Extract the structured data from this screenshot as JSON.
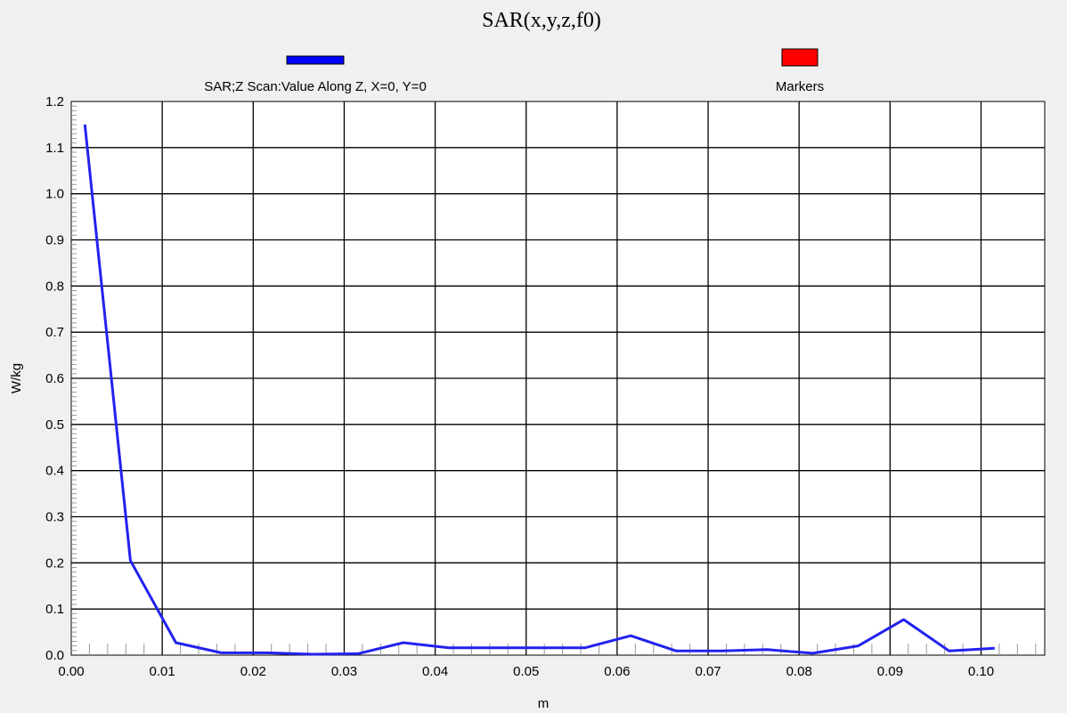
{
  "chart_data": {
    "type": "line",
    "title": "SAR(x,y,z,f0)",
    "xlabel": "m",
    "ylabel": "W/kg",
    "xlim": [
      0.0,
      0.107
    ],
    "ylim": [
      0.0,
      1.2
    ],
    "x_ticks": [
      "0.00",
      "0.01",
      "0.02",
      "0.03",
      "0.04",
      "0.05",
      "0.06",
      "0.07",
      "0.08",
      "0.09",
      "0.10"
    ],
    "y_ticks": [
      "0.0",
      "0.1",
      "0.2",
      "0.3",
      "0.4",
      "0.5",
      "0.6",
      "0.7",
      "0.8",
      "0.9",
      "1.0",
      "1.1",
      "1.2"
    ],
    "grid": true,
    "legend_position": "top",
    "legend": [
      {
        "label": "SAR;Z Scan:Value Along Z, X=0, Y=0",
        "color": "#0000ff"
      },
      {
        "label": "Markers",
        "color": "#ff0000"
      }
    ],
    "series": [
      {
        "name": "SAR;Z Scan:Value Along Z, X=0, Y=0",
        "color": "#2222ee",
        "x": [
          0.0015,
          0.0065,
          0.0115,
          0.0165,
          0.0215,
          0.0265,
          0.0315,
          0.0365,
          0.0415,
          0.0465,
          0.0515,
          0.0565,
          0.0615,
          0.0665,
          0.0715,
          0.0765,
          0.0815,
          0.0865,
          0.0915,
          0.0965,
          0.1015
        ],
        "y": [
          1.15,
          0.205,
          0.027,
          0.005,
          0.005,
          0.002,
          0.003,
          0.027,
          0.016,
          0.016,
          0.016,
          0.016,
          0.042,
          0.009,
          0.009,
          0.012,
          0.004,
          0.02,
          0.077,
          0.009,
          0.015
        ]
      }
    ]
  }
}
